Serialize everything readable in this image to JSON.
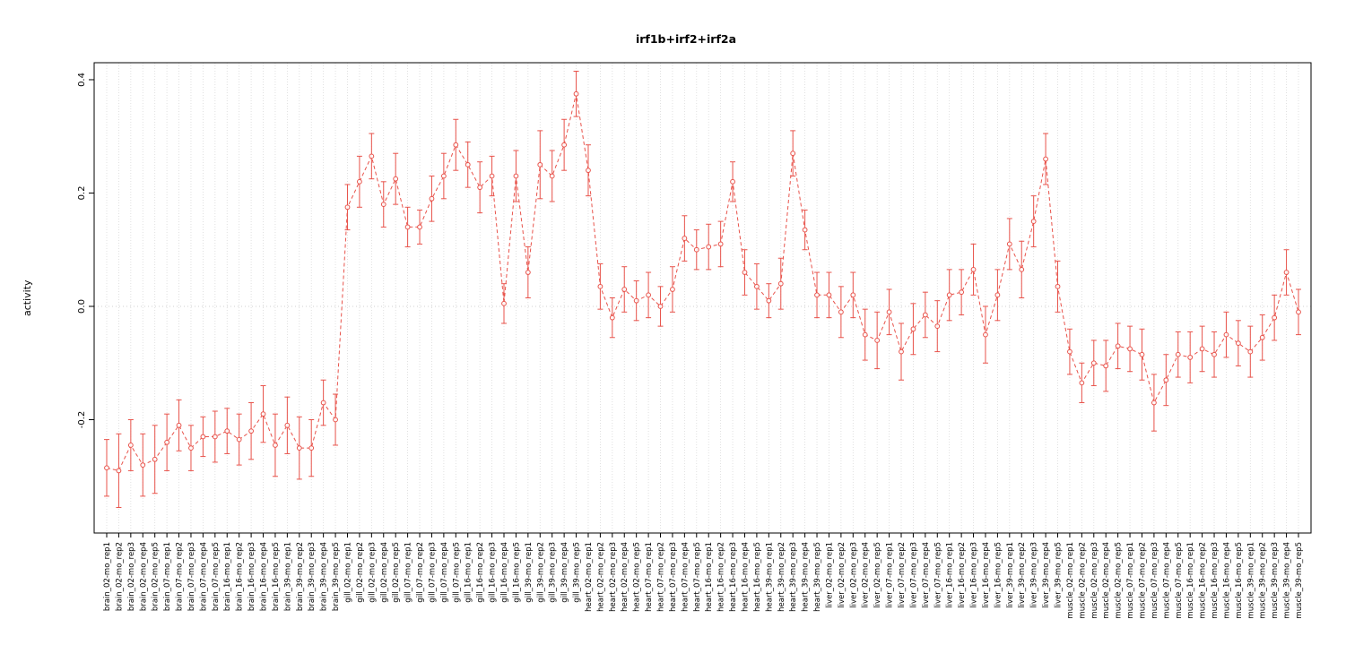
{
  "chart_data": {
    "type": "line",
    "title": "irf1b+irf2+irf2a",
    "ylabel": "activity",
    "xlabel": "",
    "ylim": [
      -0.4,
      0.43
    ],
    "yticks": [
      -0.2,
      0.0,
      0.2,
      0.4
    ],
    "ytick_labels": [
      "-0.2",
      "0.0",
      "0.2",
      "0.4"
    ],
    "grid": "vertical dotted line per category; horizontal dotted line at zero",
    "point_style": "open-circle",
    "line_style": "dashed",
    "error_bars": "symmetric, capped",
    "colors": {
      "series": "#e8534b",
      "grid": "#d9d9d9",
      "zero_line": "#c4c4c4",
      "axis": "#000000",
      "text": "#000000"
    },
    "categories": [
      "brain_02-mo_rep1",
      "brain_02-mo_rep2",
      "brain_02-mo_rep3",
      "brain_02-mo_rep4",
      "brain_02-mo_rep5",
      "brain_07-mo_rep1",
      "brain_07-mo_rep2",
      "brain_07-mo_rep3",
      "brain_07-mo_rep4",
      "brain_07-mo_rep5",
      "brain_16-mo_rep1",
      "brain_16-mo_rep2",
      "brain_16-mo_rep3",
      "brain_16-mo_rep4",
      "brain_16-mo_rep5",
      "brain_39-mo_rep1",
      "brain_39-mo_rep2",
      "brain_39-mo_rep3",
      "brain_39-mo_rep4",
      "brain_39-mo_rep5",
      "gill_02-mo_rep1",
      "gill_02-mo_rep2",
      "gill_02-mo_rep3",
      "gill_02-mo_rep4",
      "gill_02-mo_rep5",
      "gill_07-mo_rep1",
      "gill_07-mo_rep2",
      "gill_07-mo_rep3",
      "gill_07-mo_rep4",
      "gill_07-mo_rep5",
      "gill_16-mo_rep1",
      "gill_16-mo_rep2",
      "gill_16-mo_rep3",
      "gill_16-mo_rep4",
      "gill_16-mo_rep5",
      "gill_39-mo_rep1",
      "gill_39-mo_rep2",
      "gill_39-mo_rep3",
      "gill_39-mo_rep4",
      "gill_39-mo_rep5",
      "heart_02-mo_rep1",
      "heart_02-mo_rep2",
      "heart_02-mo_rep3",
      "heart_02-mo_rep4",
      "heart_02-mo_rep5",
      "heart_07-mo_rep1",
      "heart_07-mo_rep2",
      "heart_07-mo_rep3",
      "heart_07-mo_rep4",
      "heart_07-mo_rep5",
      "heart_16-mo_rep1",
      "heart_16-mo_rep2",
      "heart_16-mo_rep3",
      "heart_16-mo_rep4",
      "heart_16-mo_rep5",
      "heart_39-mo_rep1",
      "heart_39-mo_rep2",
      "heart_39-mo_rep3",
      "heart_39-mo_rep4",
      "heart_39-mo_rep5",
      "liver_02-mo_rep1",
      "liver_02-mo_rep2",
      "liver_02-mo_rep3",
      "liver_02-mo_rep4",
      "liver_02-mo_rep5",
      "liver_07-mo_rep1",
      "liver_07-mo_rep2",
      "liver_07-mo_rep3",
      "liver_07-mo_rep4",
      "liver_07-mo_rep5",
      "liver_16-mo_rep1",
      "liver_16-mo_rep2",
      "liver_16-mo_rep3",
      "liver_16-mo_rep4",
      "liver_16-mo_rep5",
      "liver_39-mo_rep1",
      "liver_39-mo_rep2",
      "liver_39-mo_rep3",
      "liver_39-mo_rep4",
      "liver_39-mo_rep5",
      "muscle_02-mo_rep1",
      "muscle_02-mo_rep2",
      "muscle_02-mo_rep3",
      "muscle_02-mo_rep4",
      "muscle_02-mo_rep5",
      "muscle_07-mo_rep1",
      "muscle_07-mo_rep2",
      "muscle_07-mo_rep3",
      "muscle_07-mo_rep4",
      "muscle_07-mo_rep5",
      "muscle_16-mo_rep1",
      "muscle_16-mo_rep2",
      "muscle_16-mo_rep3",
      "muscle_16-mo_rep4",
      "muscle_16-mo_rep5",
      "muscle_39-mo_rep1",
      "muscle_39-mo_rep2",
      "muscle_39-mo_rep3",
      "muscle_39-mo_rep4",
      "muscle_39-mo_rep5"
    ],
    "values": [
      -0.285,
      -0.29,
      -0.245,
      -0.28,
      -0.27,
      -0.24,
      -0.21,
      -0.25,
      -0.23,
      -0.23,
      -0.22,
      -0.235,
      -0.22,
      -0.19,
      -0.245,
      -0.21,
      -0.25,
      -0.25,
      -0.17,
      -0.2,
      0.175,
      0.22,
      0.265,
      0.18,
      0.225,
      0.14,
      0.14,
      0.19,
      0.23,
      0.285,
      0.25,
      0.21,
      0.23,
      0.005,
      0.23,
      0.06,
      0.25,
      0.23,
      0.285,
      0.375,
      0.24,
      0.035,
      -0.02,
      0.03,
      0.01,
      0.02,
      0.0,
      0.03,
      0.12,
      0.1,
      0.105,
      0.11,
      0.22,
      0.06,
      0.035,
      0.01,
      0.04,
      0.27,
      0.135,
      0.02,
      0.02,
      -0.01,
      0.02,
      -0.05,
      -0.06,
      -0.01,
      -0.08,
      -0.04,
      -0.015,
      -0.035,
      0.02,
      0.025,
      0.065,
      -0.05,
      0.02,
      0.11,
      0.065,
      0.15,
      0.26,
      0.035,
      -0.08,
      -0.135,
      -0.1,
      -0.105,
      -0.07,
      -0.075,
      -0.085,
      -0.17,
      -0.13,
      -0.085,
      -0.09,
      -0.075,
      -0.085,
      -0.05,
      -0.065,
      -0.08,
      -0.055,
      -0.02,
      0.06,
      -0.01
    ],
    "errors": [
      0.05,
      0.065,
      0.045,
      0.055,
      0.06,
      0.05,
      0.045,
      0.04,
      0.035,
      0.045,
      0.04,
      0.045,
      0.05,
      0.05,
      0.055,
      0.05,
      0.055,
      0.05,
      0.04,
      0.045,
      0.04,
      0.045,
      0.04,
      0.04,
      0.045,
      0.035,
      0.03,
      0.04,
      0.04,
      0.045,
      0.04,
      0.045,
      0.035,
      0.035,
      0.045,
      0.045,
      0.06,
      0.045,
      0.045,
      0.04,
      0.045,
      0.04,
      0.035,
      0.04,
      0.035,
      0.04,
      0.035,
      0.04,
      0.04,
      0.035,
      0.04,
      0.04,
      0.035,
      0.04,
      0.04,
      0.03,
      0.045,
      0.04,
      0.035,
      0.04,
      0.04,
      0.045,
      0.04,
      0.045,
      0.05,
      0.04,
      0.05,
      0.045,
      0.04,
      0.045,
      0.045,
      0.04,
      0.045,
      0.05,
      0.045,
      0.045,
      0.05,
      0.045,
      0.045,
      0.045,
      0.04,
      0.035,
      0.04,
      0.045,
      0.04,
      0.04,
      0.045,
      0.05,
      0.045,
      0.04,
      0.045,
      0.04,
      0.04,
      0.04,
      0.04,
      0.045,
      0.04,
      0.04,
      0.04,
      0.04
    ]
  }
}
